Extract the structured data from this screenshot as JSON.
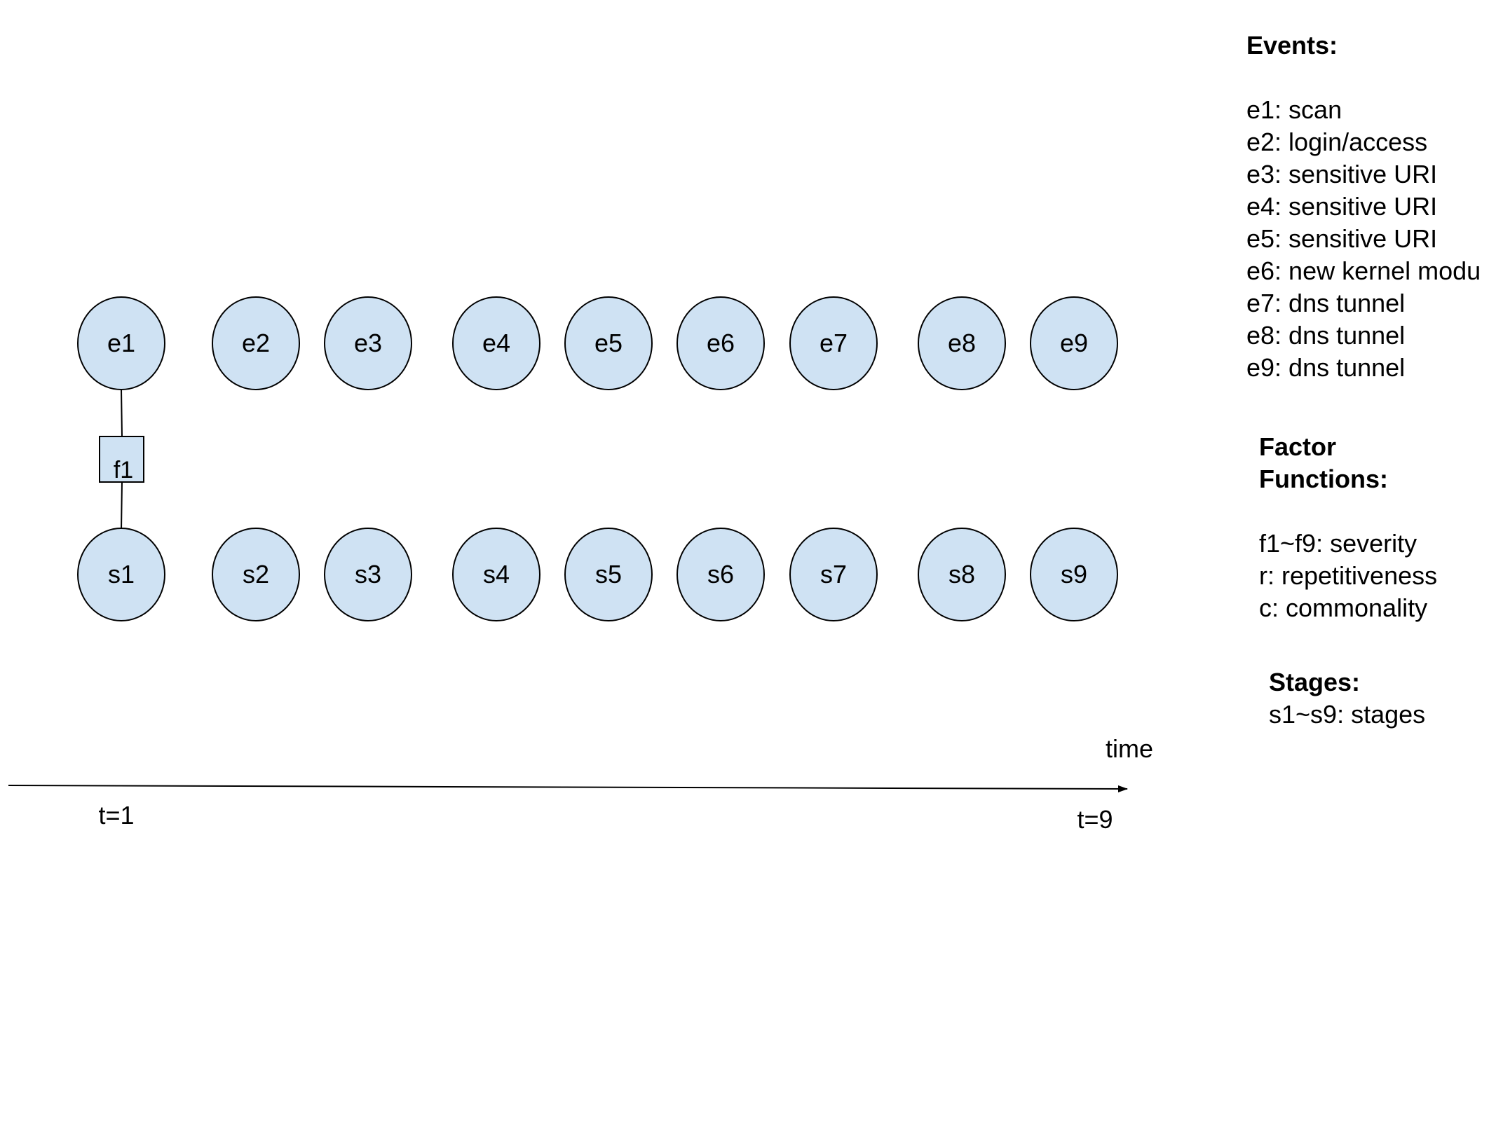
{
  "diagram": {
    "event_nodes": [
      "e1",
      "e2",
      "e3",
      "e4",
      "e5",
      "e6",
      "e7",
      "e8",
      "e9"
    ],
    "stage_nodes": [
      "s1",
      "s2",
      "s3",
      "s4",
      "s5",
      "s6",
      "s7",
      "s8",
      "s9"
    ],
    "factor_nodes": [
      "f1"
    ],
    "edges": [
      {
        "from": "e1",
        "to": "f1"
      },
      {
        "from": "f1",
        "to": "s1"
      }
    ],
    "time_axis": {
      "label": "time",
      "start_label": "t=1",
      "end_label": "t=9"
    },
    "colors": {
      "node_fill": "#cfe2f3",
      "stroke": "#000000",
      "background": "#ffffff"
    }
  },
  "legend": {
    "events": {
      "title": "Events:",
      "items": [
        "e1: scan",
        "e2: login/access",
        "e3: sensitive URI",
        "e4: sensitive URI",
        "e5: sensitive URI",
        "e6: new kernel modu",
        "e7: dns tunnel",
        "e8: dns tunnel",
        "e9: dns tunnel"
      ]
    },
    "factors": {
      "title_line1": "Factor",
      "title_line2": "Functions:",
      "items": [
        "f1~f9: severity",
        "r: repetitiveness",
        "c: commonality"
      ]
    },
    "stages": {
      "title": "Stages:",
      "items": [
        "s1~s9: stages"
      ]
    }
  }
}
